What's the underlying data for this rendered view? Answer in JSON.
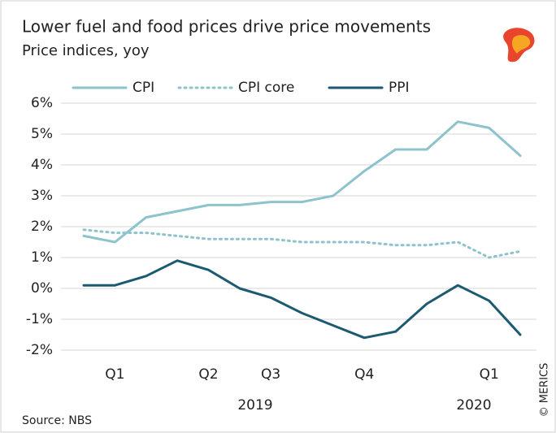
{
  "chart_data": {
    "type": "line",
    "title": "Lower fuel and food prices drive price movements",
    "subtitle": "Price indices, yoy",
    "categories": [
      null,
      "Q1",
      null,
      null,
      "Q2",
      null,
      "Q3",
      null,
      null,
      "Q4",
      null,
      null,
      null,
      "Q1",
      null
    ],
    "years": [
      "2019",
      "2020"
    ],
    "series": [
      {
        "name": "CPI",
        "color": "#8cc3cc",
        "dash": "solid",
        "values": [
          1.7,
          1.5,
          2.3,
          2.5,
          2.7,
          2.7,
          2.8,
          2.8,
          3.0,
          3.8,
          4.5,
          4.5,
          5.4,
          5.2,
          4.3
        ]
      },
      {
        "name": "CPI core",
        "color": "#8cc3cc",
        "dash": "dotted",
        "values": [
          1.9,
          1.8,
          1.8,
          1.7,
          1.6,
          1.6,
          1.6,
          1.5,
          1.5,
          1.5,
          1.4,
          1.4,
          1.5,
          1.0,
          1.2
        ]
      },
      {
        "name": "PPI",
        "color": "#1b5a70",
        "dash": "solid",
        "values": [
          0.1,
          0.1,
          0.4,
          0.9,
          0.6,
          0.0,
          -0.3,
          -0.8,
          -1.2,
          -1.6,
          -1.4,
          -0.5,
          0.1,
          -0.4,
          -1.5
        ]
      }
    ],
    "ylim": [
      -2,
      6
    ],
    "yticks": [
      {
        "value": -2,
        "label": "-2%"
      },
      {
        "value": -1,
        "label": "-1%"
      },
      {
        "value": 0,
        "label": "0%"
      },
      {
        "value": 1,
        "label": "1%"
      },
      {
        "value": 2,
        "label": "2%"
      },
      {
        "value": 3,
        "label": "3%"
      },
      {
        "value": 4,
        "label": "4%"
      },
      {
        "value": 5,
        "label": "5%"
      },
      {
        "value": 6,
        "label": "6%"
      }
    ],
    "grid": true,
    "source": "Source: NBS",
    "credit": "© MERICS"
  }
}
